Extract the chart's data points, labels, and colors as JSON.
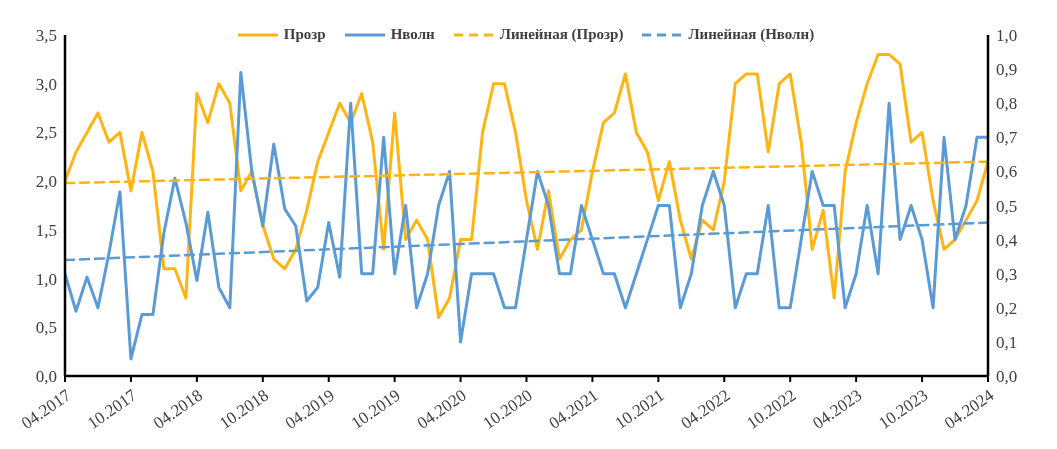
{
  "chart_data": {
    "type": "line",
    "x": [
      "2017-04",
      "2017-05",
      "2017-06",
      "2017-07",
      "2017-08",
      "2017-09",
      "2017-10",
      "2017-11",
      "2017-12",
      "2018-01",
      "2018-02",
      "2018-03",
      "2018-04",
      "2018-05",
      "2018-06",
      "2018-07",
      "2018-08",
      "2018-09",
      "2018-10",
      "2018-11",
      "2018-12",
      "2019-01",
      "2019-02",
      "2019-03",
      "2019-04",
      "2019-05",
      "2019-06",
      "2019-07",
      "2019-08",
      "2019-09",
      "2019-10",
      "2019-11",
      "2019-12",
      "2020-01",
      "2020-02",
      "2020-03",
      "2020-04",
      "2020-05",
      "2020-06",
      "2020-07",
      "2020-08",
      "2020-09",
      "2020-10",
      "2020-11",
      "2020-12",
      "2021-01",
      "2021-02",
      "2021-03",
      "2021-04",
      "2021-05",
      "2021-06",
      "2021-07",
      "2021-08",
      "2021-09",
      "2021-10",
      "2021-11",
      "2021-12",
      "2022-01",
      "2022-02",
      "2022-03",
      "2022-04",
      "2022-05",
      "2022-06",
      "2022-07",
      "2022-08",
      "2022-09",
      "2022-10",
      "2022-11",
      "2022-12",
      "2023-01",
      "2023-02",
      "2023-03",
      "2023-04",
      "2023-05",
      "2023-06",
      "2023-07",
      "2023-08",
      "2023-09",
      "2023-10",
      "2023-11",
      "2023-12",
      "2024-01",
      "2024-02",
      "2024-03",
      "2024-04"
    ],
    "series": [
      {
        "name": "Прозр",
        "color": "#ffb414",
        "values": [
          2.0,
          2.3,
          2.5,
          2.7,
          2.4,
          2.5,
          1.9,
          2.5,
          2.1,
          1.1,
          1.1,
          0.8,
          2.9,
          2.6,
          3.0,
          2.8,
          1.9,
          2.1,
          1.55,
          1.2,
          1.1,
          1.3,
          1.7,
          2.2,
          2.5,
          2.8,
          2.6,
          2.9,
          2.4,
          1.3,
          2.7,
          1.4,
          1.6,
          1.4,
          0.6,
          0.8,
          1.4,
          1.4,
          2.5,
          3.0,
          3.0,
          2.5,
          1.8,
          1.3,
          1.9,
          1.2,
          1.4,
          1.5,
          2.1,
          2.6,
          2.7,
          3.1,
          2.5,
          2.3,
          1.8,
          2.2,
          1.6,
          1.2,
          1.6,
          1.5,
          2.0,
          3.0,
          3.1,
          3.1,
          2.3,
          3.0,
          3.1,
          2.4,
          1.3,
          1.7,
          0.8,
          2.1,
          2.6,
          3.0,
          3.3,
          3.3,
          3.2,
          2.4,
          2.5,
          1.8,
          1.3,
          1.4,
          1.6,
          1.8,
          2.2
        ]
      },
      {
        "name": "Нволн",
        "color": "#5b9bd5",
        "axis": "y2",
        "values": [
          0.3,
          0.19,
          0.29,
          0.2,
          0.36,
          0.54,
          0.05,
          0.18,
          0.18,
          0.42,
          0.58,
          0.45,
          0.28,
          0.48,
          0.26,
          0.2,
          0.89,
          0.6,
          0.44,
          0.68,
          0.49,
          0.44,
          0.22,
          0.26,
          0.45,
          0.29,
          0.8,
          0.3,
          0.3,
          0.7,
          0.3,
          0.5,
          0.2,
          0.3,
          0.5,
          0.6,
          0.1,
          0.3,
          0.3,
          0.3,
          0.2,
          0.2,
          0.4,
          0.6,
          0.5,
          0.3,
          0.3,
          0.5,
          0.4,
          0.3,
          0.3,
          0.2,
          0.3,
          0.4,
          0.5,
          0.5,
          0.2,
          0.3,
          0.5,
          0.6,
          0.5,
          0.2,
          0.3,
          0.3,
          0.5,
          0.2,
          0.2,
          0.4,
          0.6,
          0.5,
          0.5,
          0.2,
          0.3,
          0.5,
          0.3,
          0.8,
          0.4,
          0.5,
          0.4,
          0.2,
          0.7,
          0.4,
          0.5,
          0.7,
          0.7
        ]
      },
      {
        "name": "Линейная (Прозр)",
        "color": "#ffb414",
        "line_style": "dashed",
        "x": [
          "2017-04",
          "2024-04"
        ],
        "values": [
          1.98,
          2.2
        ]
      },
      {
        "name": "Линейная (Нволн)",
        "color": "#5b9bd5",
        "line_style": "dashed",
        "axis": "y2",
        "x": [
          "2017-04",
          "2024-04"
        ],
        "values": [
          0.34,
          0.45
        ]
      }
    ],
    "xlim": [
      "2017-04",
      "2024-04"
    ],
    "xticks": [
      {
        "value": "2017-04",
        "label": "04.2017"
      },
      {
        "value": "2017-10",
        "label": "10.2017"
      },
      {
        "value": "2018-04",
        "label": "04.2018"
      },
      {
        "value": "2018-10",
        "label": "10.2018"
      },
      {
        "value": "2019-04",
        "label": "04.2019"
      },
      {
        "value": "2019-10",
        "label": "10.2019"
      },
      {
        "value": "2020-04",
        "label": "04.2020"
      },
      {
        "value": "2020-10",
        "label": "10.2020"
      },
      {
        "value": "2021-04",
        "label": "04.2021"
      },
      {
        "value": "2021-10",
        "label": "10.2021"
      },
      {
        "value": "2022-04",
        "label": "04.2022"
      },
      {
        "value": "2022-10",
        "label": "10.2022"
      },
      {
        "value": "2023-04",
        "label": "04.2023"
      },
      {
        "value": "2023-10",
        "label": "10.2023"
      },
      {
        "value": "2024-04",
        "label": "04.2024"
      }
    ],
    "ylim": [
      0,
      3.5
    ],
    "yticks": [
      {
        "value": 0,
        "label": "0,0"
      },
      {
        "value": 0.5,
        "label": "0,5"
      },
      {
        "value": 1,
        "label": "1,0"
      },
      {
        "value": 1.5,
        "label": "1,5"
      },
      {
        "value": 2,
        "label": "2,0"
      },
      {
        "value": 2.5,
        "label": "2,5"
      },
      {
        "value": 3,
        "label": "3,0"
      },
      {
        "value": 3.5,
        "label": "3,5"
      }
    ],
    "y2lim": [
      0,
      1
    ],
    "y2ticks": [
      {
        "value": 0,
        "label": "0,0"
      },
      {
        "value": 0.1,
        "label": "0,1"
      },
      {
        "value": 0.2,
        "label": "0,2"
      },
      {
        "value": 0.3,
        "label": "0,3"
      },
      {
        "value": 0.4,
        "label": "0,4"
      },
      {
        "value": 0.5,
        "label": "0,5"
      },
      {
        "value": 0.6,
        "label": "0,6"
      },
      {
        "value": 0.7,
        "label": "0,7"
      },
      {
        "value": 0.8,
        "label": "0,8"
      },
      {
        "value": 0.9,
        "label": "0,9"
      },
      {
        "value": 1,
        "label": "1,0"
      }
    ],
    "grid": false,
    "legend": "top",
    "marker": "none",
    "line_style": "solid"
  }
}
